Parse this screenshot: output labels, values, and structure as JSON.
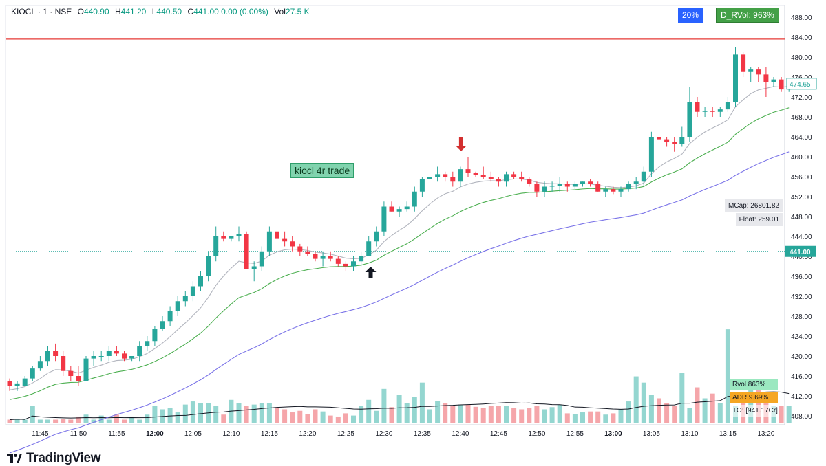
{
  "header": {
    "symbol": "KIOCL · 1 · NSE",
    "o_label": "O",
    "o": "440.90",
    "h_label": "H",
    "h": "441.20",
    "l_label": "L",
    "l": "440.50",
    "c_label": "C",
    "c": "441.00",
    "change": "0.00 (0.00%)",
    "vol_label": "Vol",
    "vol": "27.5 K"
  },
  "badges": {
    "pct": "20%",
    "drvol": "D_RVol: 963%"
  },
  "annotation": "kiocl 4r trade",
  "sidebar": {
    "mcap": "MCap: 26801.82",
    "float": "Float: 259.01"
  },
  "stats": {
    "rvol": "Rvol 863%",
    "adr": "ADR 9.69%",
    "to": "TO: [941.17Cr]"
  },
  "brand": "TradingView",
  "colors": {
    "up": "#26a69a",
    "down": "#f23645",
    "ema_fast": "#b2b5be",
    "ema_mid": "#4caf50",
    "ema_slow": "#7b74e8",
    "resistance": "#e53935",
    "vol_up": "#94d6d0",
    "vol_down": "#f5a6aa"
  },
  "chart_data": {
    "type": "candlestick",
    "y_axis_ticks": [
      408,
      412,
      416,
      420,
      424,
      428,
      432,
      436,
      440,
      444,
      448,
      452,
      456,
      460,
      464,
      468,
      472,
      476,
      480,
      484,
      488
    ],
    "ylim": [
      406,
      490
    ],
    "x_axis_ticks": [
      {
        "i": 4,
        "label": "11:45"
      },
      {
        "i": 9,
        "label": "11:50"
      },
      {
        "i": 14,
        "label": "11:55"
      },
      {
        "i": 19,
        "label": "12:00",
        "bold": true
      },
      {
        "i": 24,
        "label": "12:05"
      },
      {
        "i": 29,
        "label": "12:10"
      },
      {
        "i": 34,
        "label": "12:15"
      },
      {
        "i": 39,
        "label": "12:20"
      },
      {
        "i": 44,
        "label": "12:25"
      },
      {
        "i": 49,
        "label": "12:30"
      },
      {
        "i": 54,
        "label": "12:35"
      },
      {
        "i": 59,
        "label": "12:40"
      },
      {
        "i": 64,
        "label": "12:45"
      },
      {
        "i": 69,
        "label": "12:50"
      },
      {
        "i": 74,
        "label": "12:55"
      },
      {
        "i": 79,
        "label": "13:00",
        "bold": true
      },
      {
        "i": 84,
        "label": "13:05"
      },
      {
        "i": 89,
        "label": "13:10"
      },
      {
        "i": 94,
        "label": "13:15"
      },
      {
        "i": 99,
        "label": "13:20"
      }
    ],
    "price_labels": {
      "last": "474.65",
      "current": "441.00"
    },
    "levels": {
      "resistance": 483.6,
      "current": 441.0
    },
    "candles": [
      [
        415,
        415.5,
        413,
        414
      ],
      [
        414,
        415,
        413,
        414.5
      ],
      [
        414,
        416,
        414,
        415.5
      ],
      [
        415.5,
        418,
        415,
        417.5
      ],
      [
        417.5,
        420,
        417,
        419
      ],
      [
        419,
        422,
        418,
        421
      ],
      [
        421,
        422.5,
        419,
        420
      ],
      [
        420,
        421,
        416,
        417
      ],
      [
        417,
        418,
        415,
        416
      ],
      [
        416,
        418,
        414,
        415
      ],
      [
        415,
        420,
        415,
        419.5
      ],
      [
        419.5,
        421,
        418,
        420
      ],
      [
        420,
        421,
        419,
        420
      ],
      [
        420,
        422,
        419,
        421
      ],
      [
        421,
        422,
        420,
        420.5
      ],
      [
        420.5,
        421,
        419,
        419.5
      ],
      [
        419.5,
        420,
        419,
        420
      ],
      [
        420,
        423,
        419,
        422
      ],
      [
        422,
        424,
        421,
        423
      ],
      [
        423,
        426,
        422,
        425.5
      ],
      [
        425.5,
        428,
        425,
        427
      ],
      [
        427,
        430,
        426,
        429
      ],
      [
        429,
        432,
        428,
        431
      ],
      [
        431,
        433,
        430,
        432
      ],
      [
        432,
        435,
        431,
        434
      ],
      [
        434,
        437,
        433,
        436
      ],
      [
        436,
        441,
        435,
        440
      ],
      [
        440,
        446,
        439,
        444
      ],
      [
        444,
        445,
        443,
        443.5
      ],
      [
        443.5,
        444,
        443,
        444
      ],
      [
        444,
        446,
        443,
        444.5
      ],
      [
        444.5,
        445,
        438,
        437.5
      ],
      [
        437.5,
        439,
        435,
        438
      ],
      [
        438,
        442,
        437,
        441
      ],
      [
        441,
        446,
        440,
        445
      ],
      [
        445,
        447,
        443,
        443.5
      ],
      [
        443.5,
        445,
        442,
        443
      ],
      [
        443,
        444,
        441,
        442
      ],
      [
        442,
        442.5,
        440,
        441
      ],
      [
        441,
        442,
        440,
        440.5
      ],
      [
        440.5,
        441,
        439,
        439.5
      ],
      [
        439.5,
        441,
        438,
        440
      ],
      [
        440,
        441,
        439,
        439.5
      ],
      [
        439.5,
        440,
        438,
        438.5
      ],
      [
        438.5,
        439,
        437,
        438
      ],
      [
        438,
        440,
        437,
        439
      ],
      [
        439,
        441,
        438,
        440
      ],
      [
        440,
        444,
        440,
        443
      ],
      [
        443,
        446,
        442,
        445
      ],
      [
        445,
        451,
        444,
        450
      ],
      [
        450,
        451,
        449,
        449
      ],
      [
        449,
        450,
        448,
        449.5
      ],
      [
        449.5,
        451,
        449,
        450
      ],
      [
        450,
        454,
        449,
        453
      ],
      [
        453,
        456,
        452,
        455.5
      ],
      [
        455.5,
        457,
        454,
        456
      ],
      [
        456,
        458,
        455,
        456.5
      ],
      [
        456.5,
        457,
        455,
        456
      ],
      [
        456,
        457,
        454,
        455
      ],
      [
        455,
        458,
        454,
        457.5
      ],
      [
        457.5,
        460,
        456,
        456.8
      ],
      [
        456.8,
        457,
        456,
        456.3
      ],
      [
        456.3,
        458,
        455.5,
        456
      ],
      [
        456,
        457,
        455,
        455.5
      ],
      [
        455.5,
        456,
        454,
        455
      ],
      [
        455,
        457,
        454,
        456.5
      ],
      [
        456.5,
        457,
        455.5,
        456
      ],
      [
        456,
        457,
        455,
        455.5
      ],
      [
        455.5,
        456,
        454,
        454.5
      ],
      [
        454.5,
        455,
        452,
        453
      ],
      [
        453,
        455,
        452,
        454
      ],
      [
        454,
        455,
        453,
        454.2
      ],
      [
        454.2,
        456,
        453,
        454.5
      ],
      [
        454.5,
        455,
        453,
        454
      ],
      [
        454,
        455,
        453.5,
        454.5
      ],
      [
        454.5,
        455,
        454,
        455
      ],
      [
        455,
        455.5,
        454,
        454.5
      ],
      [
        454.5,
        455,
        453,
        453
      ],
      [
        453,
        454,
        452,
        453.5
      ],
      [
        453.5,
        454,
        452.5,
        453
      ],
      [
        453,
        454,
        452,
        453.5
      ],
      [
        453.5,
        455,
        453,
        454.5
      ],
      [
        454.5,
        456,
        453.5,
        455
      ],
      [
        455,
        458,
        454,
        457
      ],
      [
        457,
        465,
        456,
        464
      ],
      [
        464,
        465,
        463,
        463.5
      ],
      [
        463.5,
        464,
        462,
        463
      ],
      [
        463,
        464,
        461,
        462.5
      ],
      [
        462.5,
        466,
        462,
        464
      ],
      [
        464,
        474,
        463,
        471
      ],
      [
        471,
        472,
        468,
        469
      ],
      [
        469,
        470,
        468,
        469.2
      ],
      [
        469.2,
        470,
        468,
        469
      ],
      [
        469,
        470,
        468,
        469.5
      ],
      [
        469.5,
        472,
        469,
        471
      ],
      [
        471,
        482,
        470,
        480.5
      ],
      [
        480.5,
        481,
        476,
        477
      ],
      [
        477,
        478,
        475,
        477.5
      ],
      [
        477.5,
        478,
        475,
        476.5
      ],
      [
        476.5,
        478,
        472,
        475
      ],
      [
        475,
        476,
        474,
        475.5
      ],
      [
        475.5,
        476,
        473,
        473.5
      ],
      [
        473.5,
        475,
        473,
        474.65
      ]
    ],
    "volume": [
      1.2,
      1.5,
      1.2,
      5.5,
      1.2,
      1.2,
      1.2,
      1.3,
      1.2,
      2.2,
      2.8,
      1.2,
      2.5,
      1.2,
      2.8,
      1.2,
      2.2,
      1.2,
      2.8,
      5.5,
      4.5,
      5,
      3.5,
      6,
      7,
      6.5,
      6.5,
      5.5,
      2.8,
      7.5,
      6.5,
      5.5,
      6,
      6.5,
      6.5,
      5,
      4.5,
      3.5,
      4,
      3,
      4.5,
      3.8,
      2.5,
      2.2,
      3.2,
      2.5,
      5.5,
      7.5,
      4,
      11,
      5.2,
      9,
      6.5,
      8.5,
      13,
      4.5,
      7.2,
      6.5,
      5.5,
      6,
      6,
      5.3,
      5,
      5.5,
      5.5,
      5.5,
      5,
      4.5,
      5,
      5.5,
      4.5,
      5.2,
      6,
      3.2,
      3,
      3.5,
      3.8,
      3.8,
      2.8,
      3.2,
      4.5,
      7,
      15,
      13,
      9,
      8,
      6.5,
      5.5,
      6.5,
      5,
      11.5,
      8,
      9.5,
      6.5,
      5.5,
      5.5,
      8,
      12,
      11,
      8.5,
      5.5,
      5.5,
      5.5
    ],
    "volume_tall": [
      [
        88,
        16
      ],
      [
        94,
        30
      ]
    ],
    "volume_max": 32
  }
}
